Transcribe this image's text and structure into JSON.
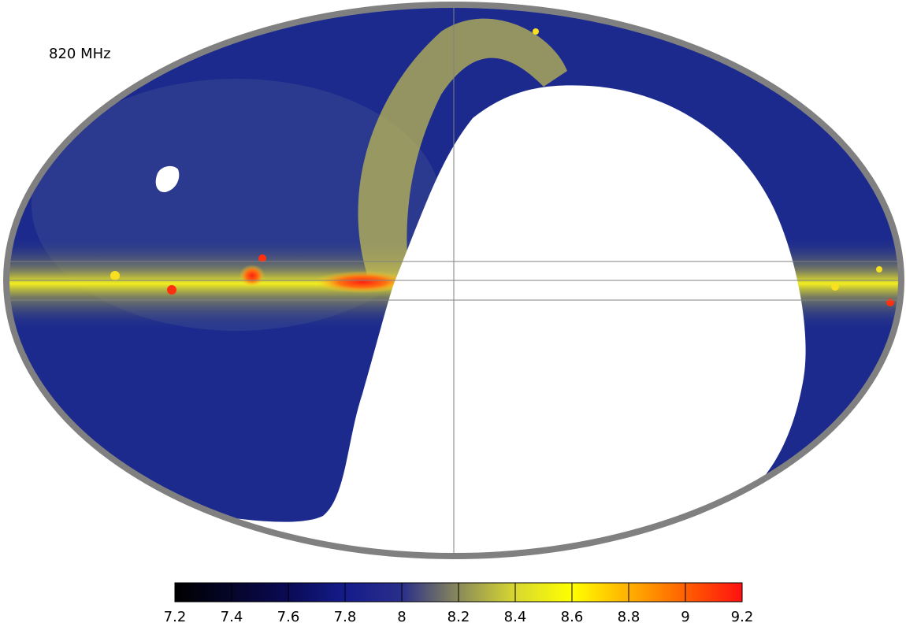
{
  "map": {
    "title": "820 MHz",
    "colorbar": {
      "lim": [
        7.2,
        9.2
      ],
      "ticks": [
        7.2,
        7.4,
        7.6,
        7.8,
        8,
        8.2,
        8.4,
        8.6,
        8.8,
        9,
        9.2
      ]
    }
  }
}
